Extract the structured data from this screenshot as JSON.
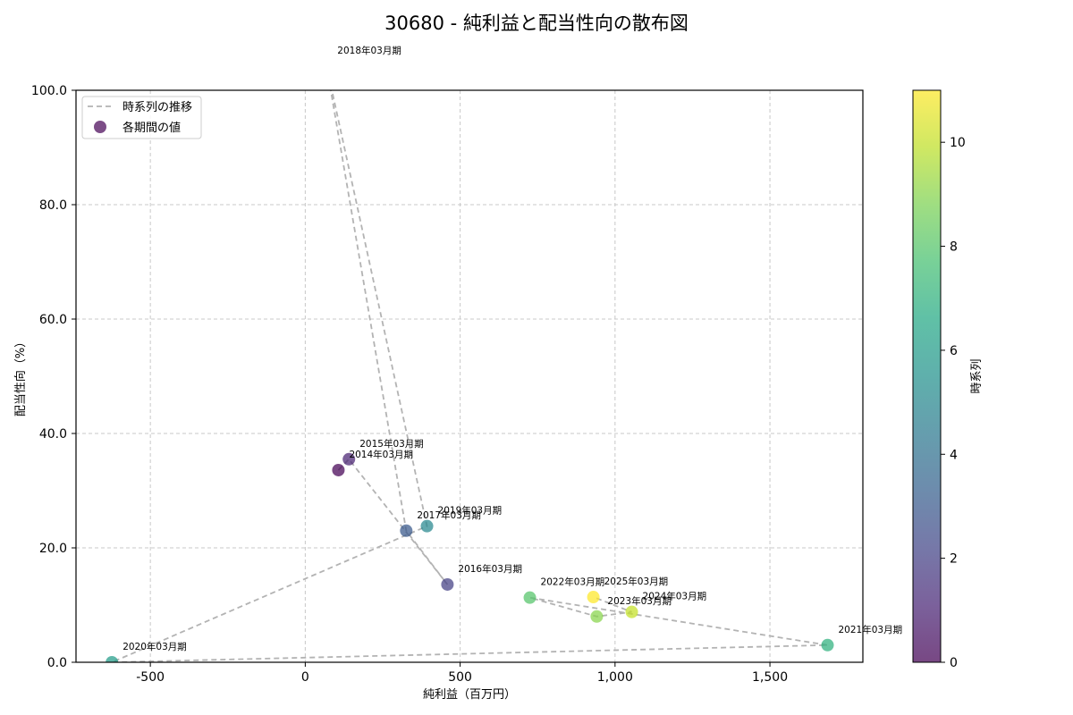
{
  "title": "30680 - 純利益と配当性向の散布図",
  "chart_data": {
    "type": "scatter",
    "title": "30680 - 純利益と配当性向の散布図",
    "xlabel": "純利益（百万円）",
    "ylabel": "配当性向（%）",
    "xlim": [
      -740,
      1800
    ],
    "ylim": [
      0,
      100
    ],
    "xticks": [
      -500,
      0,
      500,
      1000,
      1500
    ],
    "xtick_labels": [
      "-500",
      "0",
      "500",
      "1,000",
      "1,500"
    ],
    "yticks": [
      0,
      20,
      40,
      60,
      80,
      100
    ],
    "ytick_labels": [
      "0.0",
      "20.0",
      "40.0",
      "60.0",
      "80.0",
      "100.0"
    ],
    "grid": true,
    "legend": {
      "position": "upper left",
      "entries": [
        {
          "label": "時系列の推移",
          "style": "dashed-line",
          "color": "#b3b3b3"
        },
        {
          "label": "各期間の値",
          "style": "marker",
          "color": "#440154"
        }
      ]
    },
    "colorbar": {
      "label": "時系列",
      "range": [
        0,
        11
      ],
      "ticks": [
        0,
        2,
        4,
        6,
        8,
        10
      ],
      "colormap": "viridis"
    },
    "points": [
      {
        "label": "2014年03月期",
        "x": 107,
        "y": 33.6,
        "t": 0
      },
      {
        "label": "2015年03月期",
        "x": 141,
        "y": 35.5,
        "t": 1
      },
      {
        "label": "2016年03月期",
        "x": 459,
        "y": 13.6,
        "t": 2
      },
      {
        "label": "2017年03月期",
        "x": 326,
        "y": 23.0,
        "t": 3
      },
      {
        "label": "2018年03月期",
        "x": 69,
        "y": 104.2,
        "t": 4
      },
      {
        "label": "2019年03月期",
        "x": 393,
        "y": 23.8,
        "t": 5
      },
      {
        "label": "2020年03月期",
        "x": -624,
        "y": 0.0,
        "t": 6
      },
      {
        "label": "2021年03月期",
        "x": 1686,
        "y": 3.0,
        "t": 7
      },
      {
        "label": "2022年03月期",
        "x": 725,
        "y": 11.3,
        "t": 8
      },
      {
        "label": "2023年03月期",
        "x": 941,
        "y": 8.0,
        "t": 9
      },
      {
        "label": "2024年03月期",
        "x": 1054,
        "y": 8.8,
        "t": 10
      },
      {
        "label": "2025年03月期",
        "x": 930,
        "y": 11.4,
        "t": 11
      }
    ]
  }
}
